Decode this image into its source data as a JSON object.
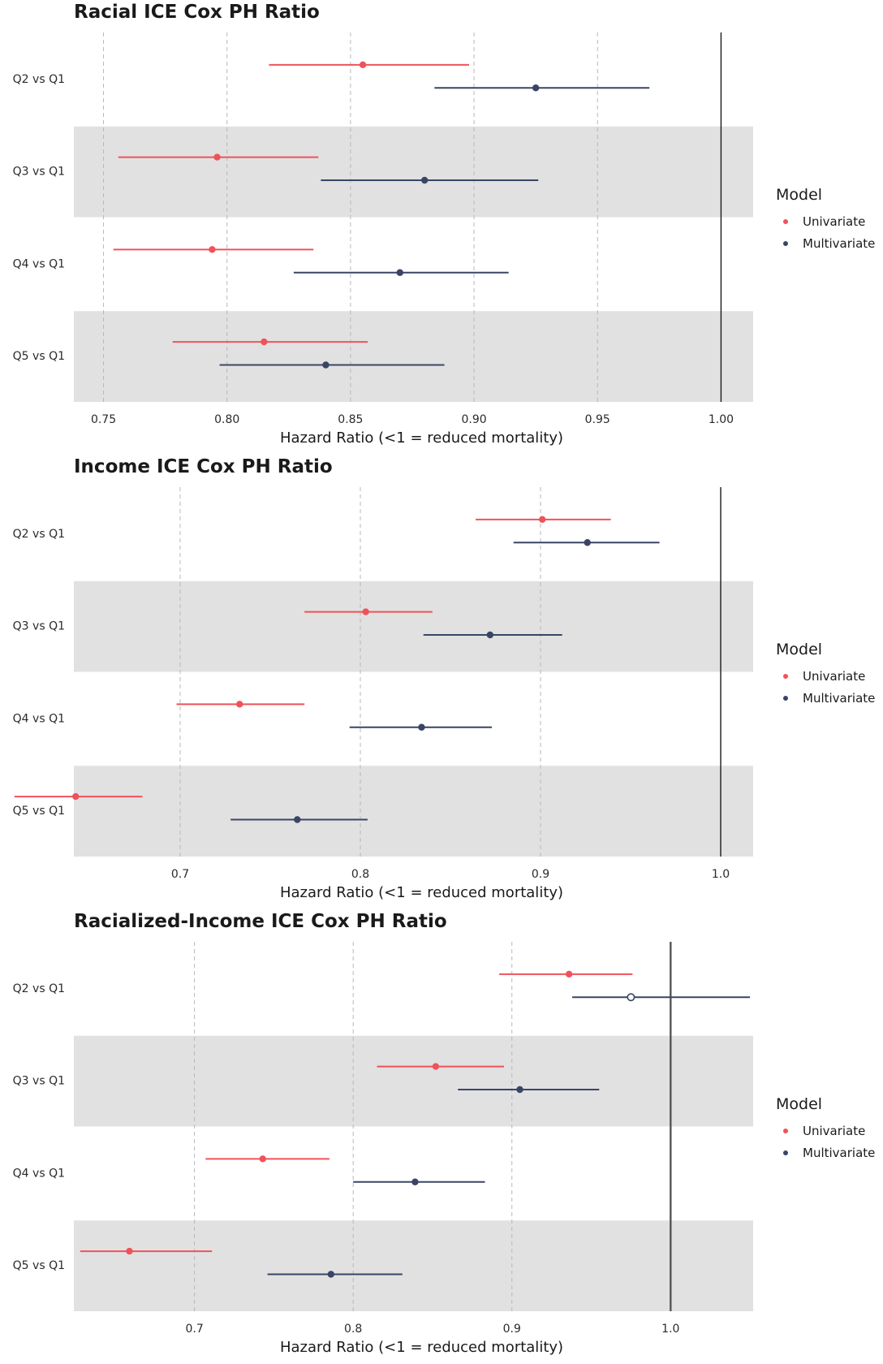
{
  "legend": {
    "title": "Model",
    "items": [
      {
        "label": "Univariate",
        "color": "#f0525a"
      },
      {
        "label": "Multivariate",
        "color": "#3a4566"
      }
    ]
  },
  "chart_data": [
    {
      "type": "forest",
      "title": "Racial ICE Cox PH Ratio",
      "xlabel": "Hazard Ratio (<1 = reduced mortality)",
      "xlim": [
        0.738,
        1.013
      ],
      "xticks": [
        0.75,
        0.8,
        0.85,
        0.9,
        0.95,
        1.0
      ],
      "xtick_labels": [
        "0.75",
        "0.80",
        "0.85",
        "0.90",
        "0.95",
        "1.00"
      ],
      "reference": 1.0,
      "categories": [
        "Q2 vs Q1",
        "Q3 vs Q1",
        "Q4 vs Q1",
        "Q5 vs Q1"
      ],
      "series": [
        {
          "name": "Univariate",
          "estimate": [
            0.855,
            0.796,
            0.794,
            0.815
          ],
          "lower": [
            0.817,
            0.756,
            0.754,
            0.778
          ],
          "upper": [
            0.898,
            0.837,
            0.835,
            0.857
          ]
        },
        {
          "name": "Multivariate",
          "estimate": [
            0.925,
            0.88,
            0.87,
            0.84
          ],
          "lower": [
            0.884,
            0.838,
            0.827,
            0.797
          ],
          "upper": [
            0.971,
            0.926,
            0.914,
            0.888
          ]
        }
      ]
    },
    {
      "type": "forest",
      "title": "Income ICE Cox PH Ratio",
      "xlabel": "Hazard Ratio (<1 = reduced mortality)",
      "xlim": [
        0.641,
        1.018
      ],
      "xticks": [
        0.7,
        0.8,
        0.9,
        1.0
      ],
      "xtick_labels": [
        "0.7",
        "0.8",
        "0.9",
        "1.0"
      ],
      "reference": 1.0,
      "categories": [
        "Q2 vs Q1",
        "Q3 vs Q1",
        "Q4 vs Q1",
        "Q5 vs Q1"
      ],
      "series": [
        {
          "name": "Univariate",
          "estimate": [
            0.901,
            0.803,
            0.733,
            0.642
          ],
          "lower": [
            0.864,
            0.769,
            0.698,
            0.608
          ],
          "upper": [
            0.939,
            0.84,
            0.769,
            0.679
          ]
        },
        {
          "name": "Multivariate",
          "estimate": [
            0.926,
            0.872,
            0.834,
            0.765
          ],
          "lower": [
            0.885,
            0.835,
            0.794,
            0.728
          ],
          "upper": [
            0.966,
            0.912,
            0.873,
            0.804
          ]
        }
      ]
    },
    {
      "type": "forest",
      "title": "Racialized-Income ICE Cox PH Ratio",
      "xlabel": "Hazard Ratio (<1 = reduced mortality)",
      "xlim": [
        0.624,
        1.052
      ],
      "xticks": [
        0.7,
        0.8,
        0.9,
        1.0
      ],
      "xtick_labels": [
        "0.7",
        "0.8",
        "0.9",
        "1.0"
      ],
      "reference": 1.0,
      "categories": [
        "Q2 vs Q1",
        "Q3 vs Q1",
        "Q4 vs Q1",
        "Q5 vs Q1"
      ],
      "series": [
        {
          "name": "Univariate",
          "estimate": [
            0.936,
            0.852,
            0.743,
            0.659
          ],
          "lower": [
            0.892,
            0.815,
            0.707,
            0.628
          ],
          "upper": [
            0.976,
            0.895,
            0.785,
            0.711
          ]
        },
        {
          "name": "Multivariate",
          "estimate": [
            0.975,
            0.905,
            0.839,
            0.786
          ],
          "lower": [
            0.938,
            0.866,
            0.8,
            0.746
          ],
          "upper": [
            1.05,
            0.955,
            0.883,
            0.831
          ],
          "open_marker_index": 0
        }
      ]
    }
  ]
}
